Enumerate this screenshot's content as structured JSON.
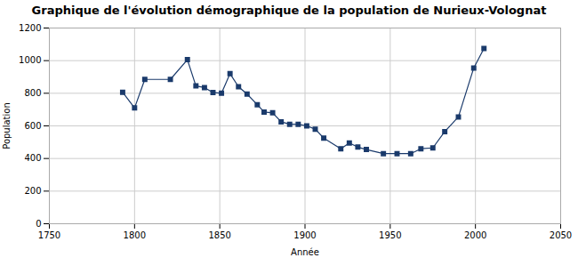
{
  "chart_data": {
    "type": "line",
    "title": "Graphique de l'évolution démographique de la population de Nurieux-Volognat",
    "xlabel": "Année",
    "ylabel": "Population",
    "x": [
      1793,
      1800,
      1806,
      1821,
      1831,
      1836,
      1841,
      1846,
      1851,
      1856,
      1861,
      1866,
      1872,
      1876,
      1881,
      1886,
      1891,
      1896,
      1901,
      1906,
      1911,
      1921,
      1926,
      1931,
      1936,
      1946,
      1954,
      1962,
      1968,
      1975,
      1982,
      1990,
      1999,
      2005
    ],
    "values": [
      806,
      710,
      885,
      885,
      1006,
      845,
      835,
      805,
      800,
      920,
      840,
      795,
      730,
      685,
      680,
      625,
      610,
      610,
      600,
      580,
      525,
      460,
      495,
      470,
      455,
      430,
      430,
      430,
      460,
      465,
      565,
      655,
      955,
      1075
    ],
    "color": "#1a3a6b",
    "marker": "square",
    "xlim": [
      1750,
      2050
    ],
    "ylim": [
      0,
      1200
    ],
    "xticks": [
      1750,
      1800,
      1850,
      1900,
      1950,
      2000,
      2050
    ],
    "yticks": [
      0,
      200,
      400,
      600,
      800,
      1000,
      1200
    ],
    "grid": true
  }
}
